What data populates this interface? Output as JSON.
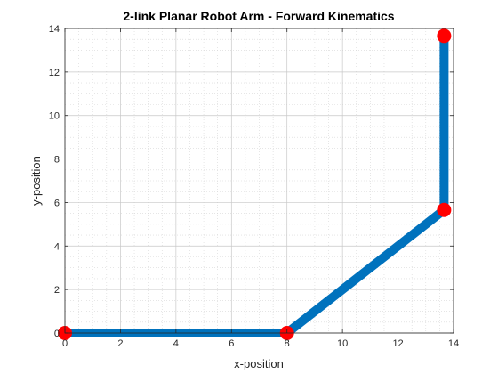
{
  "chart_data": {
    "type": "line",
    "title": "2-link Planar Robot Arm - Forward Kinematics",
    "xlabel": "x-position",
    "ylabel": "y-position",
    "xlim": [
      0,
      14
    ],
    "ylim": [
      0,
      14
    ],
    "xticks": [
      0,
      2,
      4,
      6,
      8,
      10,
      12,
      14
    ],
    "yticks": [
      0,
      2,
      4,
      6,
      8,
      10,
      12,
      14
    ],
    "grid": true,
    "minor_grid": true,
    "series": [
      {
        "x": [
          0,
          8,
          13.66,
          13.66
        ],
        "y": [
          0,
          0,
          5.66,
          13.66
        ],
        "line_color": "#0072BD",
        "marker_color": "#FF0000"
      }
    ]
  }
}
